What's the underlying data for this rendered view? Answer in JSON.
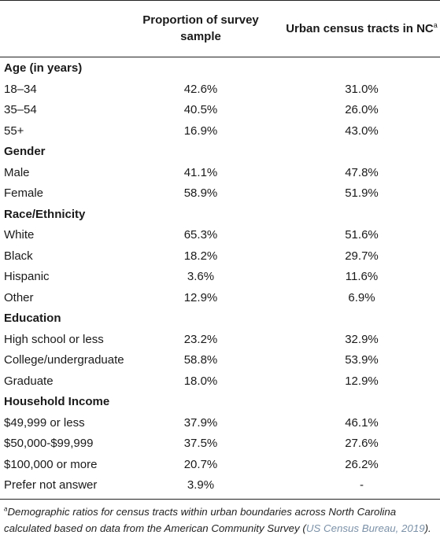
{
  "header": {
    "col1": "Proportion of survey sample",
    "col2_main": "Urban census tracts in NC",
    "col2_sup": "a"
  },
  "rows": [
    {
      "type": "section",
      "label": "Age (in years)"
    },
    {
      "type": "data",
      "label": "18–34",
      "v1": "42.6%",
      "v2": "31.0%"
    },
    {
      "type": "data",
      "label": "35–54",
      "v1": "40.5%",
      "v2": "26.0%"
    },
    {
      "type": "data",
      "label": "55+",
      "v1": "16.9%",
      "v2": "43.0%"
    },
    {
      "type": "section",
      "label": "Gender"
    },
    {
      "type": "data",
      "label": "Male",
      "v1": "41.1%",
      "v2": "47.8%"
    },
    {
      "type": "data",
      "label": "Female",
      "v1": "58.9%",
      "v2": "51.9%"
    },
    {
      "type": "section",
      "label": "Race/Ethnicity"
    },
    {
      "type": "data",
      "label": "White",
      "v1": "65.3%",
      "v2": "51.6%"
    },
    {
      "type": "data",
      "label": "Black",
      "v1": "18.2%",
      "v2": "29.7%"
    },
    {
      "type": "data",
      "label": "Hispanic",
      "v1": "3.6%",
      "v2": "11.6%"
    },
    {
      "type": "data",
      "label": "Other",
      "v1": "12.9%",
      "v2": "6.9%"
    },
    {
      "type": "section",
      "label": "Education"
    },
    {
      "type": "data",
      "label": "High school or less",
      "v1": "23.2%",
      "v2": "32.9%"
    },
    {
      "type": "data",
      "label": "College/undergraduate",
      "v1": "58.8%",
      "v2": "53.9%"
    },
    {
      "type": "data",
      "label": "Graduate",
      "v1": "18.0%",
      "v2": "12.9%"
    },
    {
      "type": "section",
      "label": "Household Income"
    },
    {
      "type": "data",
      "label": "$49,999 or less",
      "v1": "37.9%",
      "v2": "46.1%"
    },
    {
      "type": "data",
      "label": "$50,000-$99,999",
      "v1": "37.5%",
      "v2": "27.6%"
    },
    {
      "type": "data",
      "label": "$100,000 or more",
      "v1": "20.7%",
      "v2": "26.2%"
    },
    {
      "type": "data",
      "label": "Prefer not answer",
      "v1": "3.9%",
      "v2": "-"
    }
  ],
  "footnote": {
    "marker": "a",
    "text": "Demographic ratios for census tracts within urban boundaries across North Carolina calculated based on data from the American Community Survey (",
    "citation": "US Census Bureau, 2019",
    "end": ")."
  },
  "colors": {
    "rule": "#222222",
    "citation_link": "#7b91a8"
  }
}
